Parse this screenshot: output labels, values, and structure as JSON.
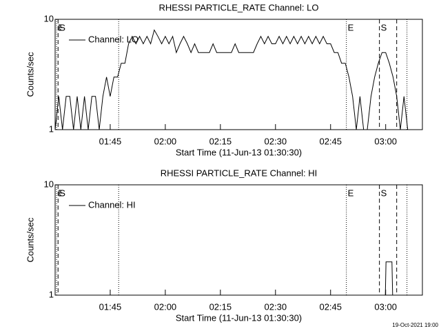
{
  "chart_data": [
    {
      "type": "line",
      "title": "RHESSI PARTICLE_RATE Channel: LO",
      "x_label": "Start Time (11-Jun-13 01:30:30)",
      "y_label": "Counts/sec",
      "log_y": true,
      "ylim": [
        1,
        10
      ],
      "yticks": [
        1,
        10
      ],
      "xlim": [
        0,
        100
      ],
      "xticks": [
        {
          "value": 15,
          "label": "01:45"
        },
        {
          "value": 30,
          "label": "02:00"
        },
        {
          "value": 45,
          "label": "02:15"
        },
        {
          "value": 60,
          "label": "02:30"
        },
        {
          "value": 75,
          "label": "02:45"
        },
        {
          "value": 90,
          "label": "03:00"
        }
      ],
      "legend": "top-left",
      "markers": [
        {
          "x": 0.4,
          "style": "dotted",
          "label": "E"
        },
        {
          "x": 0.8,
          "style": "dashed",
          "label": "S"
        },
        {
          "x": 17.3,
          "style": "dotted"
        },
        {
          "x": 79.3,
          "style": "dotted",
          "label": "E"
        },
        {
          "x": 88.3,
          "style": "dashed",
          "label": "S"
        },
        {
          "x": 93,
          "style": "dashed"
        },
        {
          "x": 95.8,
          "style": "dotted"
        }
      ],
      "series": [
        {
          "name": "Channel: LO",
          "color": "#000000",
          "x": [
            0,
            1,
            2,
            3,
            4,
            5,
            6,
            7,
            8,
            9,
            10,
            11,
            12,
            13,
            14,
            15,
            16,
            17,
            18,
            19,
            20,
            21,
            22,
            23,
            24,
            25,
            26,
            27,
            28,
            29,
            30,
            31,
            32,
            33,
            34,
            35,
            36,
            37,
            38,
            39,
            40,
            41,
            42,
            43,
            44,
            45,
            46,
            47,
            48,
            49,
            50,
            51,
            52,
            53,
            54,
            55,
            56,
            57,
            58,
            59,
            60,
            61,
            62,
            63,
            64,
            65,
            66,
            67,
            68,
            69,
            70,
            71,
            72,
            73,
            74,
            75,
            76,
            77,
            78,
            79,
            80,
            81,
            82,
            83,
            84,
            85,
            86,
            87,
            88,
            89,
            90,
            91,
            92,
            93,
            94,
            95,
            96,
            97
          ],
          "values": [
            1,
            2,
            1,
            2,
            2,
            1,
            2,
            1,
            2,
            1,
            2,
            2,
            1,
            2,
            3,
            2,
            3,
            3,
            4,
            4,
            6,
            7,
            6,
            7,
            6,
            7,
            6,
            8,
            7,
            6,
            7,
            6,
            7,
            5,
            6,
            7,
            6,
            5,
            6,
            5,
            5,
            5,
            5,
            6,
            5,
            5,
            5,
            5,
            5,
            6,
            5,
            5,
            5,
            5,
            5,
            6,
            7,
            6,
            7,
            6,
            6,
            7,
            6,
            7,
            6,
            7,
            6,
            7,
            6,
            7,
            6,
            7,
            6,
            7,
            6,
            6,
            5,
            5,
            4,
            4,
            3,
            2,
            1,
            2,
            1,
            1,
            2,
            3,
            4,
            5,
            5,
            4,
            3,
            2,
            1,
            2,
            1,
            1
          ]
        }
      ]
    },
    {
      "type": "line",
      "title": "RHESSI PARTICLE_RATE Channel: HI",
      "x_label": "Start Time (11-Jun-13 01:30:30)",
      "y_label": "Counts/sec",
      "log_y": true,
      "ylim": [
        1,
        10
      ],
      "yticks": [
        1,
        10
      ],
      "xlim": [
        0,
        100
      ],
      "xticks": [
        {
          "value": 15,
          "label": "01:45"
        },
        {
          "value": 30,
          "label": "02:00"
        },
        {
          "value": 45,
          "label": "02:15"
        },
        {
          "value": 60,
          "label": "02:30"
        },
        {
          "value": 75,
          "label": "02:45"
        },
        {
          "value": 90,
          "label": "03:00"
        }
      ],
      "legend": "top-left",
      "markers": [
        {
          "x": 0.4,
          "style": "dotted",
          "label": "E"
        },
        {
          "x": 0.8,
          "style": "dashed",
          "label": "S"
        },
        {
          "x": 17.3,
          "style": "dotted"
        },
        {
          "x": 79.3,
          "style": "dotted",
          "label": "E"
        },
        {
          "x": 88.3,
          "style": "dashed",
          "label": "S"
        },
        {
          "x": 93,
          "style": "dashed"
        },
        {
          "x": 95.8,
          "style": "dotted"
        }
      ],
      "series": [
        {
          "name": "Channel: HI",
          "color": "#000000",
          "x": [
            88.8,
            89.9,
            90.1,
            91.7,
            91.9,
            93
          ],
          "values": [
            1,
            1,
            2,
            2,
            1,
            1
          ]
        }
      ]
    }
  ],
  "footer": "19-Oct-2021 19:00"
}
